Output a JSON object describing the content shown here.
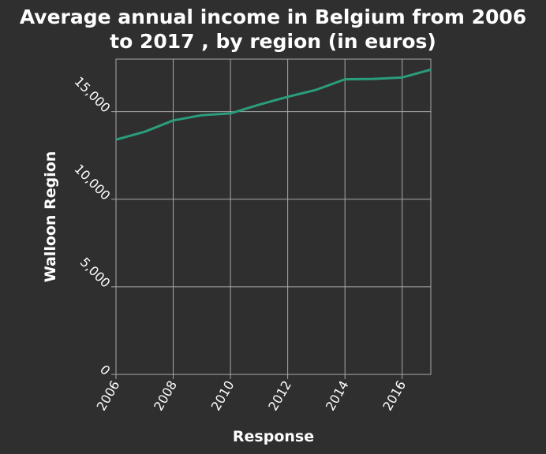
{
  "chart_data": {
    "type": "line",
    "title_line1": "Average annual income in Belgium from 2006",
    "title_line2": "to 2017 , by region (in euros)",
    "xlabel": "Response",
    "ylabel": "Walloon Region",
    "xlim": [
      2006,
      2017
    ],
    "ylim": [
      0,
      18000
    ],
    "x_ticks": [
      2006,
      2008,
      2010,
      2012,
      2014,
      2016
    ],
    "x_tick_labels": [
      "2006",
      "2008",
      "2010",
      "2012",
      "2014",
      "2016"
    ],
    "y_ticks": [
      0,
      5000,
      10000,
      15000
    ],
    "y_tick_labels": [
      "0",
      "5,000",
      "10,000",
      "15,000"
    ],
    "grid": true,
    "series": [
      {
        "x": [
          2006,
          2007,
          2008,
          2009,
          2010,
          2011,
          2012,
          2013,
          2014,
          2015,
          2016,
          2017
        ],
        "values": [
          13400,
          13850,
          14500,
          14800,
          14900,
          15400,
          15850,
          16250,
          16850,
          16870,
          16950,
          17400
        ]
      }
    ],
    "colors": {
      "background": "#2f2f2f",
      "grid": "#a8a8a8",
      "line": "#2a9d7c",
      "text": "#ffffff"
    }
  }
}
